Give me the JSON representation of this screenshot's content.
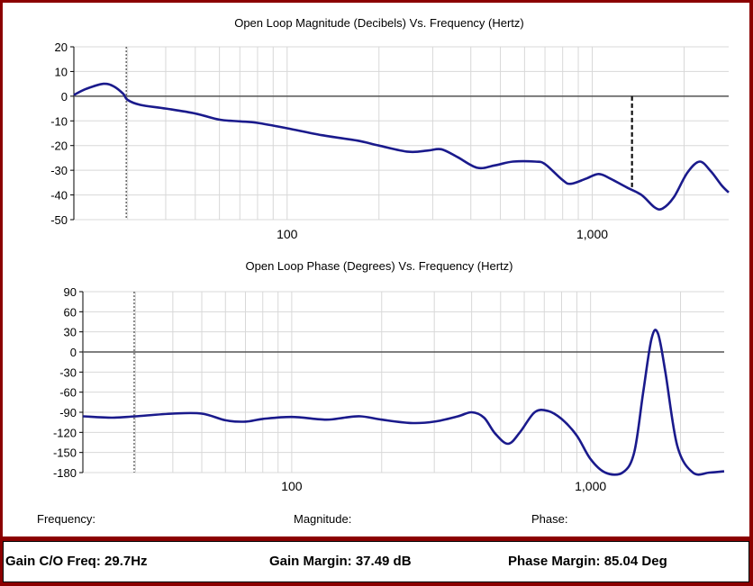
{
  "chart_data": [
    {
      "type": "line",
      "title": "Open Loop Magnitude (Decibels) Vs. Frequency (Hertz)",
      "xscale": "log",
      "xlim": [
        20,
        2800
      ],
      "ylim": [
        -50,
        20
      ],
      "y_ticks": [
        "20",
        "10",
        "0",
        "-10",
        "-20",
        "-30",
        "-40",
        "-50"
      ],
      "x_ticks": [
        {
          "value": 100,
          "label": "100"
        },
        {
          "value": 1000,
          "label": "1,000"
        }
      ],
      "grid": true,
      "markers": [
        {
          "x": 29.7,
          "style": "dotted"
        },
        {
          "x": 1350,
          "y_from": 0,
          "y_to": -37.5,
          "style": "dashed"
        }
      ],
      "series": [
        {
          "color": "#1a1a8c",
          "points": [
            [
              20,
              0.5
            ],
            [
              22,
              3.0
            ],
            [
              25,
              5.0
            ],
            [
              27,
              4.0
            ],
            [
              29,
              1.0
            ],
            [
              30,
              -1.5
            ],
            [
              33,
              -3.5
            ],
            [
              40,
              -5.0
            ],
            [
              50,
              -7.0
            ],
            [
              60,
              -9.5
            ],
            [
              70,
              -10.2
            ],
            [
              80,
              -10.8
            ],
            [
              100,
              -13.0
            ],
            [
              130,
              -15.8
            ],
            [
              170,
              -18.0
            ],
            [
              200,
              -20.0
            ],
            [
              250,
              -22.5
            ],
            [
              290,
              -22.0
            ],
            [
              320,
              -21.5
            ],
            [
              360,
              -24.5
            ],
            [
              420,
              -29.0
            ],
            [
              480,
              -28.0
            ],
            [
              550,
              -26.5
            ],
            [
              650,
              -26.5
            ],
            [
              700,
              -27.5
            ],
            [
              800,
              -34.0
            ],
            [
              850,
              -35.5
            ],
            [
              950,
              -33.5
            ],
            [
              1050,
              -31.5
            ],
            [
              1150,
              -33.5
            ],
            [
              1300,
              -37.0
            ],
            [
              1450,
              -40.0
            ],
            [
              1600,
              -45.0
            ],
            [
              1700,
              -45.5
            ],
            [
              1850,
              -41.0
            ],
            [
              2050,
              -31.0
            ],
            [
              2250,
              -26.5
            ],
            [
              2450,
              -30.5
            ],
            [
              2650,
              -36.0
            ],
            [
              2800,
              -39.0
            ]
          ]
        }
      ]
    },
    {
      "type": "line",
      "title": "Open Loop Phase (Degrees) Vs. Frequency (Hertz)",
      "xscale": "log",
      "xlim": [
        20,
        2800
      ],
      "ylim": [
        -180,
        90
      ],
      "y_ticks": [
        "90",
        "60",
        "30",
        "0",
        "-30",
        "-60",
        "-90",
        "-120",
        "-150",
        "-180"
      ],
      "x_ticks": [
        {
          "value": 100,
          "label": "100"
        },
        {
          "value": 1000,
          "label": "1,000"
        }
      ],
      "grid": true,
      "markers": [
        {
          "x": 29.7,
          "style": "dotted"
        }
      ],
      "series": [
        {
          "color": "#1a1a8c",
          "points": [
            [
              20,
              -96
            ],
            [
              25,
              -98
            ],
            [
              30,
              -96
            ],
            [
              40,
              -92
            ],
            [
              50,
              -92
            ],
            [
              60,
              -102
            ],
            [
              70,
              -104
            ],
            [
              80,
              -100
            ],
            [
              100,
              -97
            ],
            [
              130,
              -101
            ],
            [
              150,
              -98
            ],
            [
              170,
              -96
            ],
            [
              200,
              -101
            ],
            [
              250,
              -106
            ],
            [
              300,
              -104
            ],
            [
              360,
              -96
            ],
            [
              400,
              -90
            ],
            [
              440,
              -98
            ],
            [
              480,
              -122
            ],
            [
              530,
              -137
            ],
            [
              580,
              -120
            ],
            [
              650,
              -90
            ],
            [
              720,
              -88
            ],
            [
              800,
              -100
            ],
            [
              900,
              -125
            ],
            [
              1000,
              -160
            ],
            [
              1120,
              -180
            ],
            [
              1280,
              -180
            ],
            [
              1400,
              -150
            ],
            [
              1500,
              -60
            ],
            [
              1600,
              20
            ],
            [
              1680,
              28
            ],
            [
              1780,
              -30
            ],
            [
              1950,
              -140
            ],
            [
              2200,
              -180
            ],
            [
              2500,
              -182
            ],
            [
              2800,
              -178
            ]
          ]
        }
      ]
    }
  ],
  "readouts": {
    "frequency_label": "Frequency:",
    "magnitude_label": "Magnitude:",
    "phase_label": "Phase:"
  },
  "status": {
    "gain_co_freq": "Gain C/O Freq: 29.7Hz",
    "gain_margin": "Gain Margin: 37.49 dB",
    "phase_margin": "Phase Margin: 85.04 Deg"
  }
}
